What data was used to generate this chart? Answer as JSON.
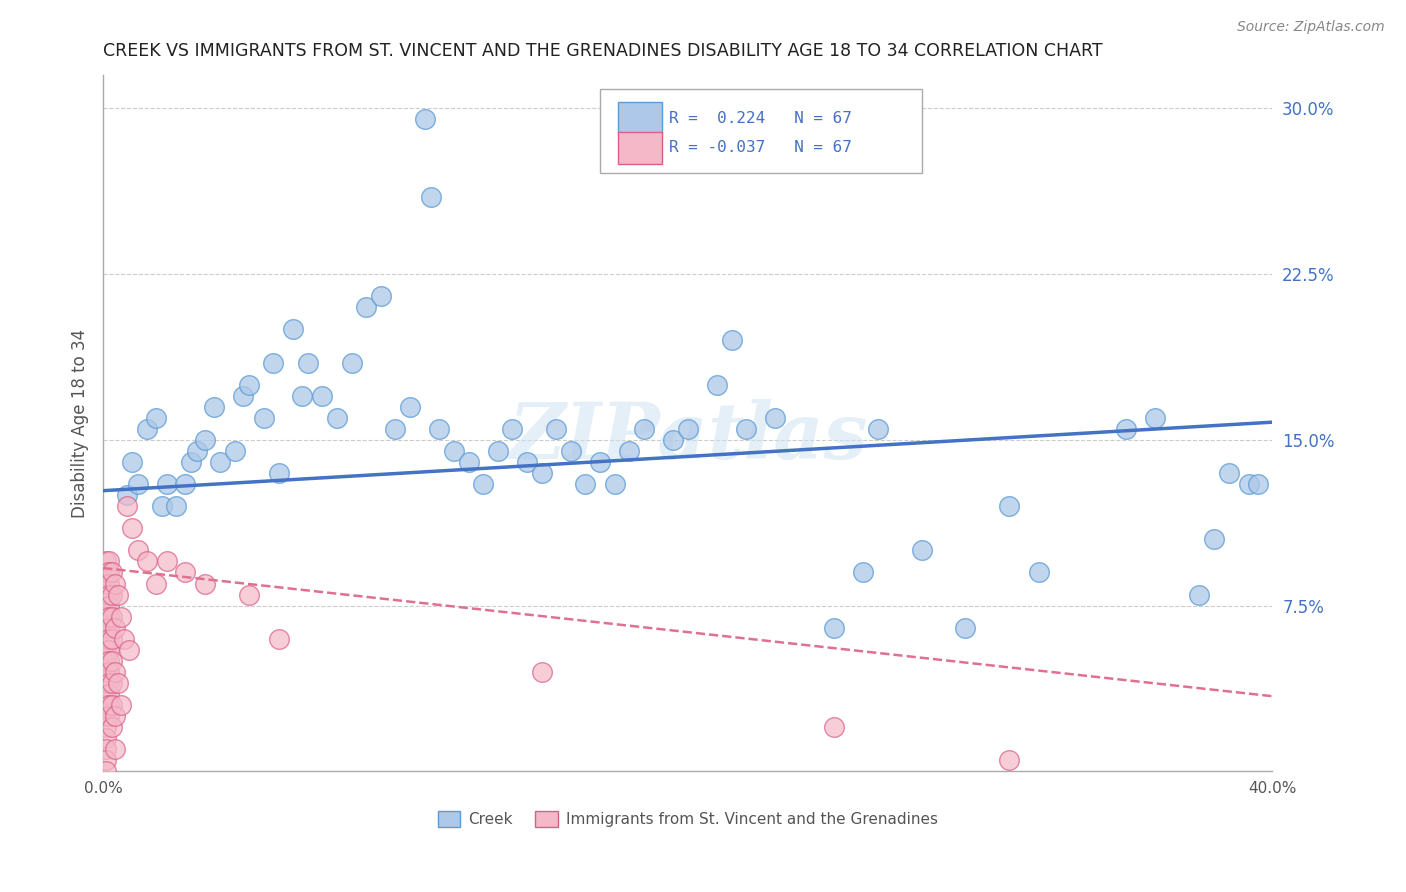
{
  "title": "CREEK VS IMMIGRANTS FROM ST. VINCENT AND THE GRENADINES DISABILITY AGE 18 TO 34 CORRELATION CHART",
  "source": "Source: ZipAtlas.com",
  "ylabel": "Disability Age 18 to 34",
  "x_min": 0.0,
  "x_max": 0.4,
  "y_min": 0.0,
  "y_max": 0.315,
  "y_ticks_right": [
    0.075,
    0.15,
    0.225,
    0.3
  ],
  "y_tick_labels_right": [
    "7.5%",
    "15.0%",
    "22.5%",
    "30.0%"
  ],
  "background_color": "#ffffff",
  "grid_color": "#cccccc",
  "watermark": "ZIPatlas",
  "legend_r1": "R =  0.224",
  "legend_n1": "N = 67",
  "legend_r2": "R = -0.037",
  "legend_n2": "N = 67",
  "series1_color": "#adc8e8",
  "series1_edge": "#5b9bd5",
  "series2_color": "#f4b8c8",
  "series2_edge": "#d95f88",
  "line1_color": "#4472c4",
  "line2_color": "#e07090",
  "legend_label1": "Creek",
  "legend_label2": "Immigrants from St. Vincent and the Grenadines",
  "creek_x": [
    0.008,
    0.01,
    0.012,
    0.015,
    0.018,
    0.02,
    0.022,
    0.025,
    0.028,
    0.03,
    0.032,
    0.035,
    0.038,
    0.04,
    0.045,
    0.048,
    0.05,
    0.055,
    0.058,
    0.06,
    0.065,
    0.068,
    0.07,
    0.075,
    0.08,
    0.085,
    0.09,
    0.095,
    0.1,
    0.105,
    0.11,
    0.112,
    0.115,
    0.12,
    0.125,
    0.13,
    0.135,
    0.14,
    0.145,
    0.15,
    0.155,
    0.16,
    0.165,
    0.17,
    0.175,
    0.18,
    0.185,
    0.195,
    0.2,
    0.21,
    0.215,
    0.22,
    0.23,
    0.25,
    0.26,
    0.265,
    0.28,
    0.295,
    0.31,
    0.32,
    0.35,
    0.36,
    0.375,
    0.38,
    0.385,
    0.392,
    0.395
  ],
  "creek_y": [
    0.125,
    0.14,
    0.13,
    0.155,
    0.16,
    0.12,
    0.13,
    0.12,
    0.13,
    0.14,
    0.145,
    0.15,
    0.165,
    0.14,
    0.145,
    0.17,
    0.175,
    0.16,
    0.185,
    0.135,
    0.2,
    0.17,
    0.185,
    0.17,
    0.16,
    0.185,
    0.21,
    0.215,
    0.155,
    0.165,
    0.295,
    0.26,
    0.155,
    0.145,
    0.14,
    0.13,
    0.145,
    0.155,
    0.14,
    0.135,
    0.155,
    0.145,
    0.13,
    0.14,
    0.13,
    0.145,
    0.155,
    0.15,
    0.155,
    0.175,
    0.195,
    0.155,
    0.16,
    0.065,
    0.09,
    0.155,
    0.1,
    0.065,
    0.12,
    0.09,
    0.155,
    0.16,
    0.08,
    0.105,
    0.135,
    0.13,
    0.13
  ],
  "svg_x_dense": [
    0.001,
    0.001,
    0.001,
    0.001,
    0.001,
    0.001,
    0.001,
    0.001,
    0.001,
    0.001,
    0.001,
    0.001,
    0.001,
    0.001,
    0.001,
    0.001,
    0.001,
    0.001,
    0.001,
    0.001,
    0.002,
    0.002,
    0.002,
    0.002,
    0.002,
    0.002,
    0.002,
    0.002,
    0.002,
    0.002,
    0.002,
    0.002,
    0.002,
    0.002,
    0.002,
    0.003,
    0.003,
    0.003,
    0.003,
    0.003,
    0.003,
    0.003,
    0.003,
    0.004,
    0.004,
    0.004,
    0.004,
    0.004,
    0.005,
    0.005,
    0.006,
    0.006,
    0.007,
    0.008,
    0.009,
    0.01,
    0.012,
    0.015,
    0.018,
    0.022,
    0.028,
    0.035,
    0.05,
    0.06,
    0.15,
    0.25,
    0.31
  ],
  "svg_y_dense": [
    0.095,
    0.09,
    0.085,
    0.08,
    0.075,
    0.07,
    0.065,
    0.06,
    0.055,
    0.05,
    0.045,
    0.04,
    0.035,
    0.03,
    0.025,
    0.02,
    0.015,
    0.01,
    0.005,
    0.0,
    0.095,
    0.09,
    0.085,
    0.08,
    0.075,
    0.07,
    0.065,
    0.06,
    0.055,
    0.05,
    0.045,
    0.04,
    0.035,
    0.03,
    0.025,
    0.09,
    0.08,
    0.07,
    0.06,
    0.05,
    0.04,
    0.03,
    0.02,
    0.085,
    0.065,
    0.045,
    0.025,
    0.01,
    0.08,
    0.04,
    0.07,
    0.03,
    0.06,
    0.12,
    0.055,
    0.11,
    0.1,
    0.095,
    0.085,
    0.095,
    0.09,
    0.085,
    0.08,
    0.06,
    0.045,
    0.02,
    0.005
  ],
  "creek_trend_x": [
    0.0,
    0.4
  ],
  "creek_trend_y": [
    0.127,
    0.158
  ],
  "svg_trend_x": [
    0.0,
    0.4
  ],
  "svg_trend_y": [
    0.092,
    0.034
  ]
}
